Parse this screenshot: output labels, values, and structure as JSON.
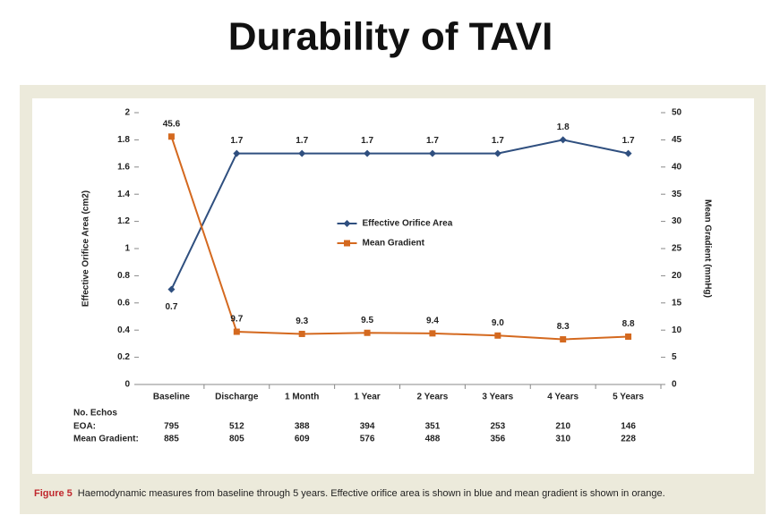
{
  "slide_title": "Durability of TAVI",
  "chart_data": {
    "type": "line",
    "categories": [
      "Baseline",
      "Discharge",
      "1 Month",
      "1 Year",
      "2 Years",
      "3 Years",
      "4 Years",
      "5 Years"
    ],
    "y_label": "Effective Orifice Area (cm2)",
    "y2_label": "Mean Gradient (mmHg)",
    "ylim": [
      0,
      2
    ],
    "yticks": [
      0,
      0.2,
      0.4,
      0.6,
      0.8,
      1,
      1.2,
      1.4,
      1.6,
      1.8,
      2
    ],
    "y2lim": [
      0,
      50
    ],
    "y2ticks": [
      0,
      5,
      10,
      15,
      20,
      25,
      30,
      35,
      40,
      45,
      50
    ],
    "grid": false,
    "legend": "center",
    "series": [
      {
        "name": "Effective Orifice Area",
        "color": "#2f4f7f",
        "marker": "diamond",
        "values": [
          0.7,
          1.7,
          1.7,
          1.7,
          1.7,
          1.7,
          1.8,
          1.7
        ]
      },
      {
        "name": "Mean Gradient",
        "color": "#d4691f",
        "marker": "square",
        "axis": "y2",
        "values": [
          45.6,
          9.7,
          9.3,
          9.5,
          9.4,
          9.0,
          8.3,
          8.8
        ],
        "value_labels": [
          "45.6",
          "9.7",
          "9.3",
          "9.5",
          "9.4",
          "9.0",
          "8.3",
          "8.8"
        ]
      }
    ],
    "table": {
      "header": "No. Echos",
      "rows": [
        {
          "label": "EOA:",
          "color": "#1f3a66",
          "values": [
            795,
            512,
            388,
            394,
            351,
            253,
            210,
            146
          ]
        },
        {
          "label": "Mean Gradient:",
          "color": "#d4691f",
          "values": [
            885,
            805,
            609,
            576,
            488,
            356,
            310,
            228
          ]
        }
      ]
    }
  },
  "caption": {
    "label": "Figure 5",
    "text": "Haemodynamic measures from baseline through 5 years. Effective orifice area is shown in blue and mean gradient is shown in orange."
  }
}
